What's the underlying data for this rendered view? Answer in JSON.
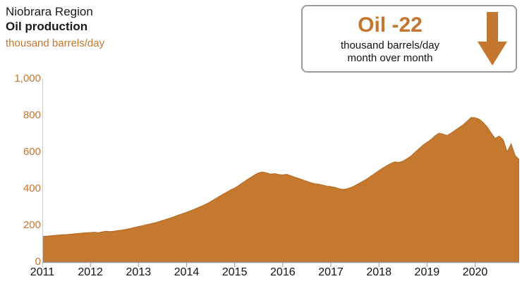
{
  "header": {
    "region": "Niobrara Region",
    "metric": "Oil production",
    "units": "thousand barrels/day"
  },
  "callout": {
    "headline": "Oil -22",
    "line1": "thousand barrels/day",
    "line2": "month over month",
    "arrow_icon": "arrow-down-icon"
  },
  "colors": {
    "accent": "#c2762e",
    "area_fill": "#c5792f",
    "area_edge": "#b1671f",
    "axis_line": "#999999",
    "left_axis_line": "#c9c9c9"
  },
  "chart_data": {
    "type": "area",
    "title": "Niobrara Region Oil production",
    "ylabel": "thousand barrels/day",
    "ylim": [
      0,
      1000
    ],
    "grid": false,
    "legend": "none",
    "x_range": [
      "2011-01",
      "2020-12"
    ],
    "y_ticks": [
      {
        "label": "1,000",
        "value": 1000
      },
      {
        "label": "800",
        "value": 800
      },
      {
        "label": "600",
        "value": 600
      },
      {
        "label": "400",
        "value": 400
      },
      {
        "label": "200",
        "value": 200
      },
      {
        "label": "0",
        "value": 0
      }
    ],
    "x_ticks": [
      "2011",
      "2012",
      "2013",
      "2014",
      "2015",
      "2016",
      "2017",
      "2018",
      "2019",
      "2020"
    ],
    "points_per_year": 12,
    "values": [
      140,
      141,
      143,
      145,
      147,
      149,
      150,
      152,
      154,
      156,
      158,
      160,
      161,
      163,
      160,
      165,
      168,
      166,
      169,
      172,
      175,
      179,
      184,
      189,
      194,
      199,
      204,
      209,
      214,
      220,
      227,
      234,
      241,
      249,
      257,
      264,
      272,
      280,
      289,
      298,
      308,
      318,
      330,
      343,
      356,
      369,
      381,
      394,
      404,
      418,
      433,
      448,
      462,
      476,
      487,
      492,
      486,
      480,
      483,
      478,
      476,
      479,
      471,
      463,
      456,
      449,
      441,
      433,
      428,
      425,
      420,
      415,
      412,
      408,
      401,
      396,
      400,
      407,
      417,
      429,
      441,
      454,
      469,
      484,
      499,
      514,
      527,
      539,
      547,
      544,
      551,
      564,
      579,
      599,
      619,
      639,
      654,
      669,
      689,
      704,
      699,
      691,
      704,
      719,
      734,
      749,
      769,
      790,
      788,
      780,
      762,
      738,
      705,
      675,
      688,
      668,
      602,
      645,
      582,
      560
    ]
  }
}
